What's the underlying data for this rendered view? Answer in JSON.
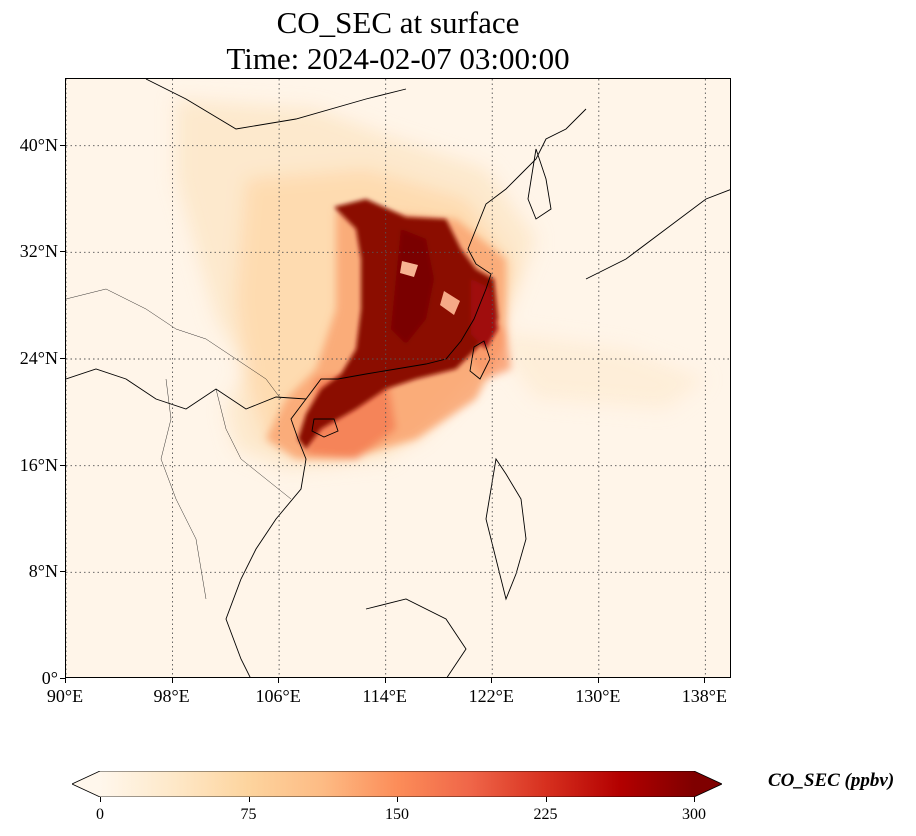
{
  "title": {
    "line1": "CO_SEC at surface",
    "line2": "Time: 2024-02-07 03:00:00"
  },
  "axes": {
    "lat_labels": [
      "0°",
      "8°N",
      "16°N",
      "24°N",
      "32°N",
      "40°N"
    ],
    "lon_labels": [
      "90°E",
      "98°E",
      "106°E",
      "114°E",
      "122°E",
      "130°E",
      "138°E"
    ],
    "lat_values": [
      0,
      8,
      16,
      24,
      32,
      40
    ],
    "lon_values": [
      90,
      98,
      106,
      114,
      122,
      130,
      138
    ],
    "lon_range": [
      90,
      140
    ],
    "lat_range": [
      0,
      45
    ],
    "gridlines": "dotted"
  },
  "colorbar": {
    "label": "CO_SEC (ppbv)",
    "ticks": [
      "0",
      "75",
      "150",
      "225",
      "300"
    ],
    "min": 0,
    "max": 300,
    "extend": "both",
    "colormap": "OrRd",
    "colors": [
      "#fff7ec",
      "#fee8c8",
      "#fdd49e",
      "#fdbb84",
      "#fc8d59",
      "#ef6548",
      "#d7301f",
      "#b30000",
      "#7f0000"
    ]
  },
  "map_data": {
    "variable": "CO_SEC",
    "level": "surface",
    "background_value_ppbv": 10,
    "features": [
      "coastlines",
      "country borders"
    ]
  }
}
